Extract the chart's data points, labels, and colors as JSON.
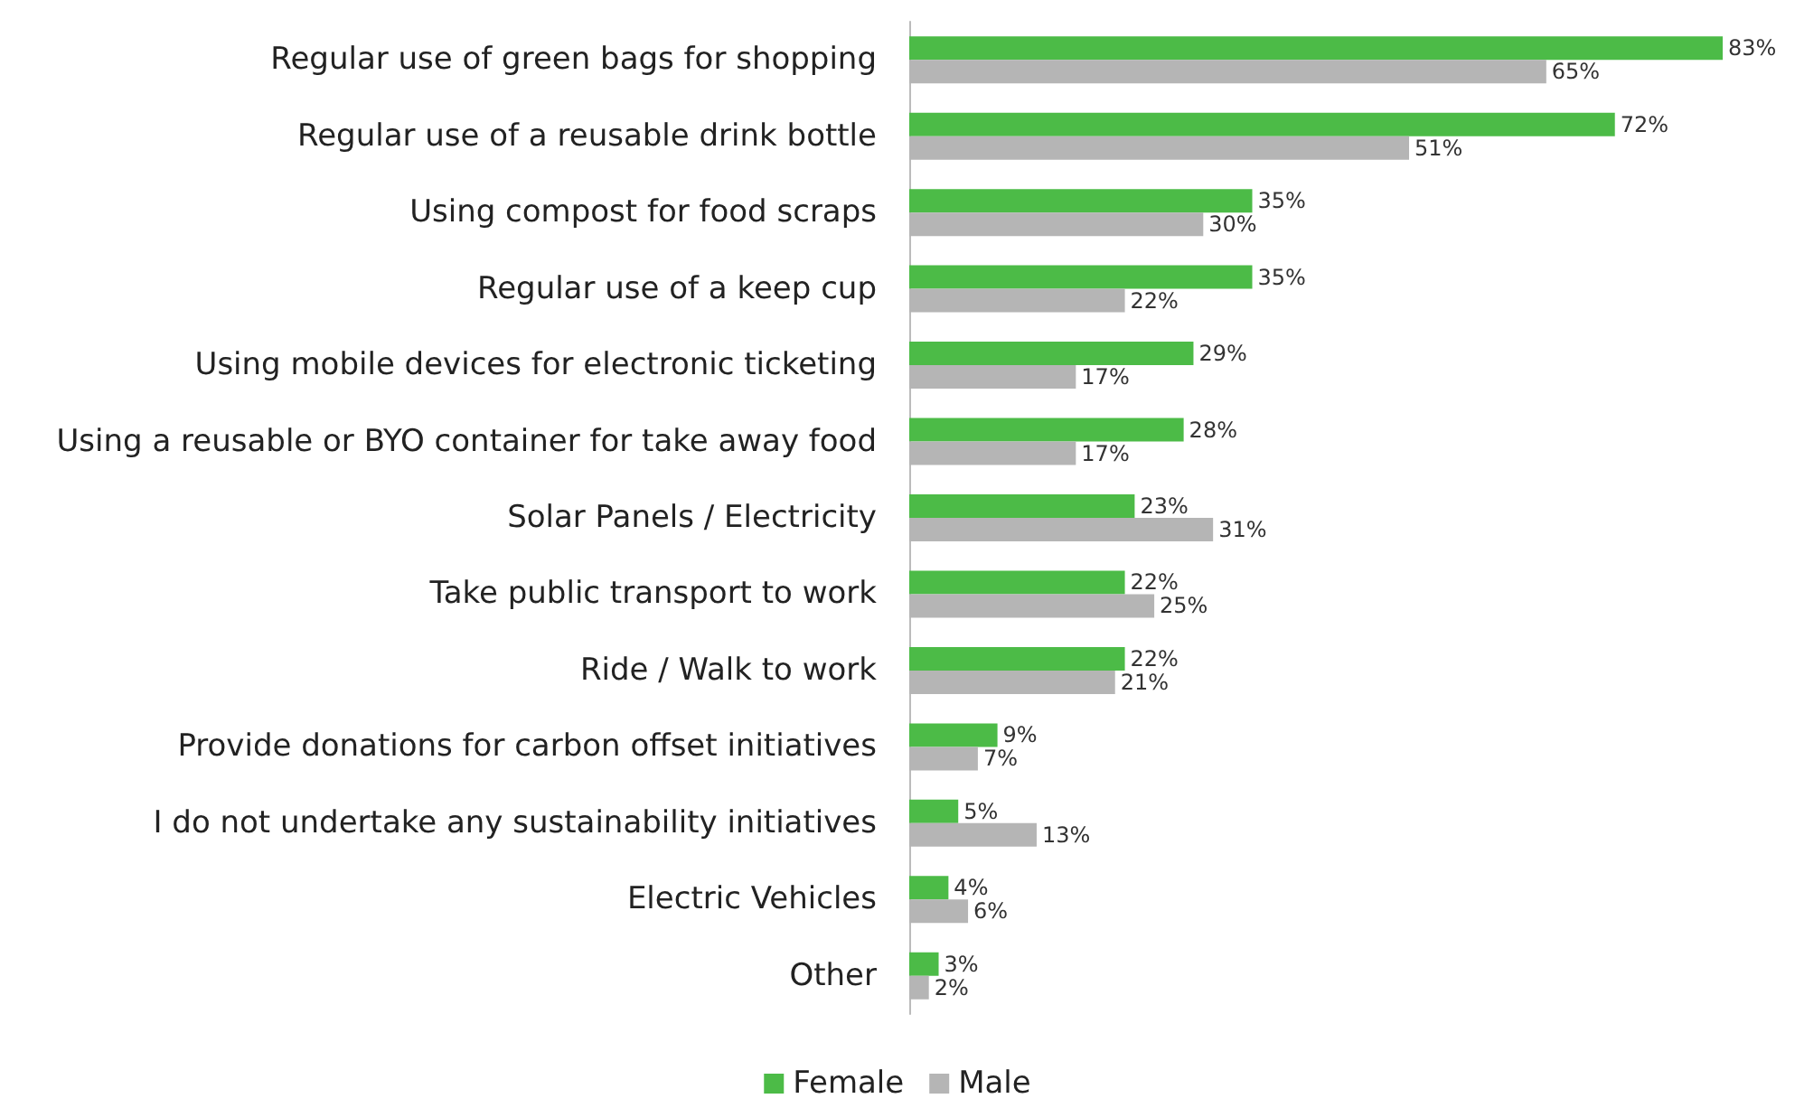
{
  "chart_data": {
    "type": "bar",
    "orientation": "horizontal",
    "legend": "bottom",
    "categories": [
      "Regular use of green bags for shopping",
      "Regular use of a reusable drink bottle",
      "Using compost for food scraps",
      "Regular use of a keep cup",
      "Using mobile devices for electronic ticketing",
      "Using a reusable or BYO container for take away food",
      "Solar Panels / Electricity",
      "Take public transport to work",
      "Ride / Walk to work",
      "Provide donations for carbon offset initiatives",
      "I do not undertake any sustainability initiatives",
      "Electric Vehicles",
      "Other"
    ],
    "series": [
      {
        "name": "Female",
        "color": "#4cbb47",
        "values": [
          83,
          72,
          35,
          35,
          29,
          28,
          23,
          22,
          22,
          9,
          5,
          4,
          3
        ],
        "value_labels": [
          "83%",
          "72%",
          "35%",
          "35%",
          "29%",
          "28%",
          "23%",
          "22%",
          "22%",
          "9%",
          "5%",
          "4%",
          "3%"
        ]
      },
      {
        "name": "Male",
        "color": "#b5b5b5",
        "values": [
          65,
          51,
          30,
          22,
          17,
          17,
          31,
          25,
          21,
          7,
          13,
          6,
          2
        ],
        "value_labels": [
          "65%",
          "51%",
          "30%",
          "22%",
          "17%",
          "17%",
          "31%",
          "25%",
          "21%",
          "7%",
          "13%",
          "6%",
          "2%"
        ]
      }
    ]
  }
}
